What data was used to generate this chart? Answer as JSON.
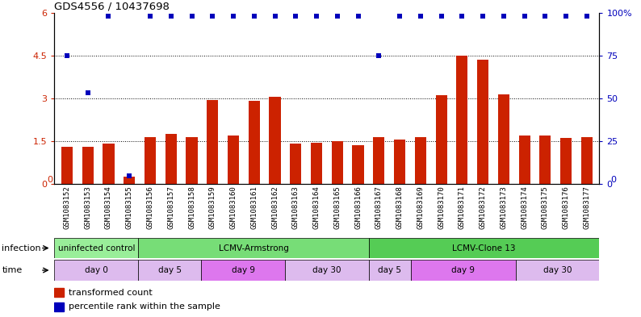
{
  "title": "GDS4556 / 10437698",
  "samples": [
    "GSM1083152",
    "GSM1083153",
    "GSM1083154",
    "GSM1083155",
    "GSM1083156",
    "GSM1083157",
    "GSM1083158",
    "GSM1083159",
    "GSM1083160",
    "GSM1083161",
    "GSM1083162",
    "GSM1083163",
    "GSM1083164",
    "GSM1083165",
    "GSM1083166",
    "GSM1083167",
    "GSM1083168",
    "GSM1083169",
    "GSM1083170",
    "GSM1083171",
    "GSM1083172",
    "GSM1083173",
    "GSM1083174",
    "GSM1083175",
    "GSM1083176",
    "GSM1083177"
  ],
  "red_bars": [
    1.3,
    1.3,
    1.4,
    0.25,
    1.65,
    1.75,
    1.65,
    2.95,
    1.7,
    2.9,
    3.05,
    1.4,
    1.45,
    1.5,
    1.35,
    1.65,
    1.55,
    1.65,
    3.1,
    4.5,
    4.35,
    3.15,
    1.7,
    1.7,
    1.6,
    1.65
  ],
  "blue_dots_left_scale": [
    4.5,
    3.2,
    5.88,
    0.28,
    5.88,
    5.88,
    5.88,
    5.88,
    5.88,
    5.88,
    5.88,
    5.88,
    5.88,
    5.88,
    5.88,
    4.5,
    5.88,
    5.88,
    5.88,
    5.88,
    5.88,
    5.88,
    5.88,
    5.88,
    5.88,
    5.88
  ],
  "left_ylim": [
    0,
    6
  ],
  "right_ylim": [
    0,
    100
  ],
  "left_yticks": [
    0,
    1.5,
    3.0,
    4.5,
    6.0
  ],
  "right_yticks": [
    0,
    25,
    50,
    75,
    100
  ],
  "bar_color": "#cc2200",
  "dot_color": "#0000bb",
  "infection_groups": [
    {
      "label": "uninfected control",
      "start": 0,
      "end": 3,
      "color": "#99ee99"
    },
    {
      "label": "LCMV-Armstrong",
      "start": 4,
      "end": 14,
      "color": "#77dd77"
    },
    {
      "label": "LCMV-Clone 13",
      "start": 15,
      "end": 25,
      "color": "#55cc55"
    }
  ],
  "time_groups": [
    {
      "label": "day 0",
      "start": 0,
      "end": 3,
      "color": "#ddbbee"
    },
    {
      "label": "day 5",
      "start": 4,
      "end": 6,
      "color": "#ddbbee"
    },
    {
      "label": "day 9",
      "start": 7,
      "end": 10,
      "color": "#dd77ee"
    },
    {
      "label": "day 30",
      "start": 11,
      "end": 14,
      "color": "#ddbbee"
    },
    {
      "label": "day 5",
      "start": 15,
      "end": 16,
      "color": "#ddbbee"
    },
    {
      "label": "day 9",
      "start": 17,
      "end": 21,
      "color": "#dd77ee"
    },
    {
      "label": "day 30",
      "start": 22,
      "end": 25,
      "color": "#ddbbee"
    }
  ],
  "legend_items": [
    {
      "label": "transformed count",
      "color": "#cc2200"
    },
    {
      "label": "percentile rank within the sample",
      "color": "#0000bb"
    }
  ],
  "xticklabel_bg": "#cccccc",
  "label_fontsize": 7.5,
  "tick_fontsize": 6.5
}
